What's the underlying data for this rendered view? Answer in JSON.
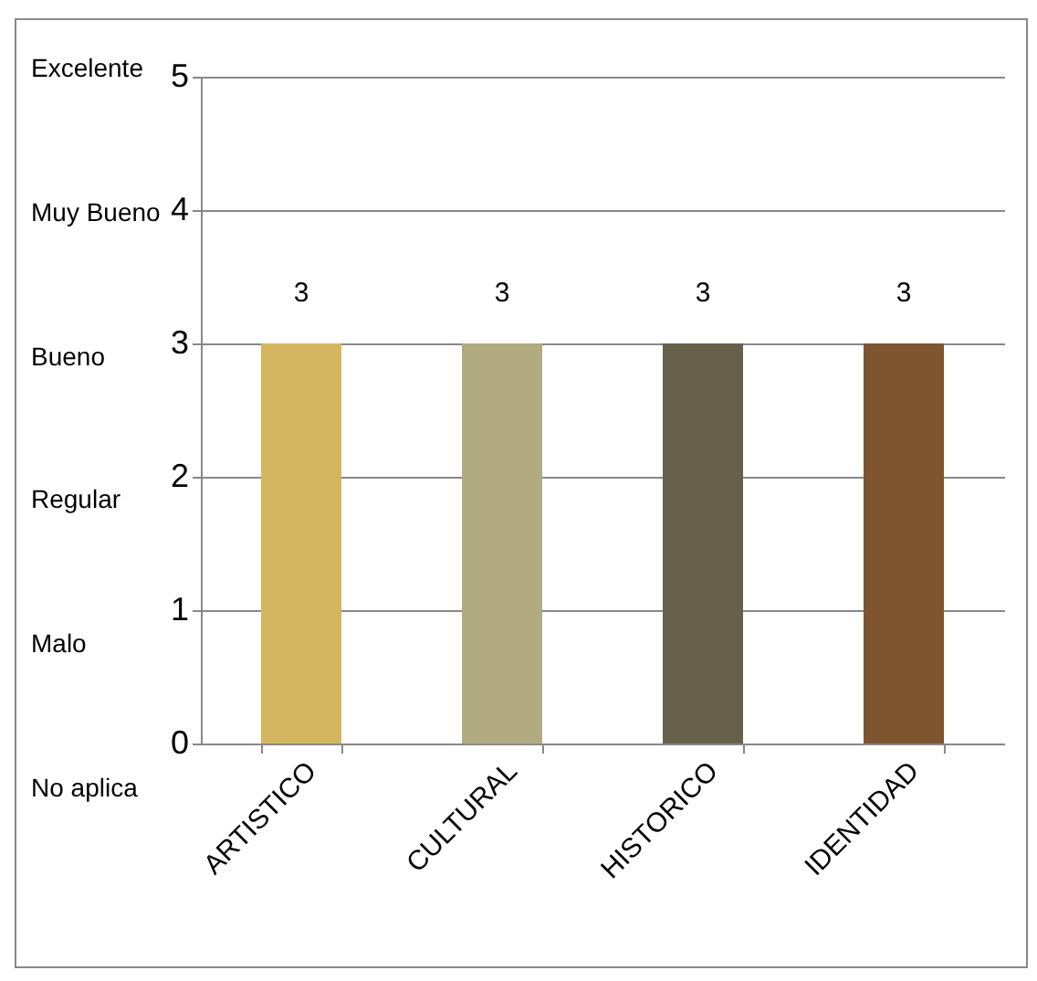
{
  "chart_data": {
    "type": "bar",
    "categories": [
      "ARTISTICO",
      "CULTURAL",
      "HISTORICO",
      "IDENTIDAD"
    ],
    "values": [
      3,
      3,
      3,
      3
    ],
    "colors": [
      "#d4b560",
      "#b2aa80",
      "#67614b",
      "#7e552e"
    ],
    "ylim": [
      0,
      5
    ],
    "yticks": [
      0,
      1,
      2,
      3,
      4,
      5
    ],
    "grid": "y",
    "data_labels": true,
    "annotations": [
      "Excelente",
      "Muy Bueno",
      "Bueno",
      "Regular",
      "Malo",
      "No aplica"
    ]
  }
}
